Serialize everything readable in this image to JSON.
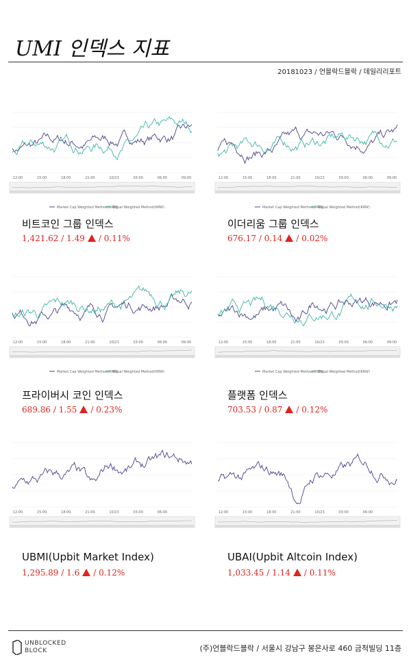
{
  "header": {
    "title": "UMI 인덱스 지표",
    "subtitle": "20181023 / 언블락드블락 / 데일리리포트"
  },
  "chart_labels": {
    "times": [
      "12:00",
      "15:00",
      "18:00",
      "21:00",
      "10/23",
      "03:00",
      "06:00",
      "09:00"
    ],
    "legend": [
      "Market Cap Weighted Method(KRW)",
      "Equal Weighted Method(KRW)"
    ]
  },
  "separator": "/",
  "indices": [
    {
      "name": "비트코인 그룹 인덱스",
      "value": "1,421.62",
      "change": "1.49",
      "percent": "0.11%"
    },
    {
      "name": "이더리움 그룹 인덱스",
      "value": "676.17",
      "change": "0.14",
      "percent": "0.02%"
    },
    {
      "name": "프라이버시 코인 인덱스",
      "value": "689.86",
      "change": "1.55",
      "percent": "0.23%"
    },
    {
      "name": "플랫폼 인덱스",
      "value": "703.53",
      "change": "0.87",
      "percent": "0.12%"
    },
    {
      "name": "UBMI(Upbit Market Index)",
      "value": "1,295.89",
      "change": "1.6",
      "percent": "0.12%"
    },
    {
      "name": "UBAI(Upbit Altcoin Index)",
      "value": "1,033.45",
      "change": "1.14",
      "percent": "0.11%"
    }
  ],
  "footer": {
    "logo_top": "UNBLOCKED",
    "logo_bottom": "BLOCK",
    "address": "(주)언블락드블락 / 서울시 강남구 봉은사로 460 금척빌딩 11층"
  }
}
